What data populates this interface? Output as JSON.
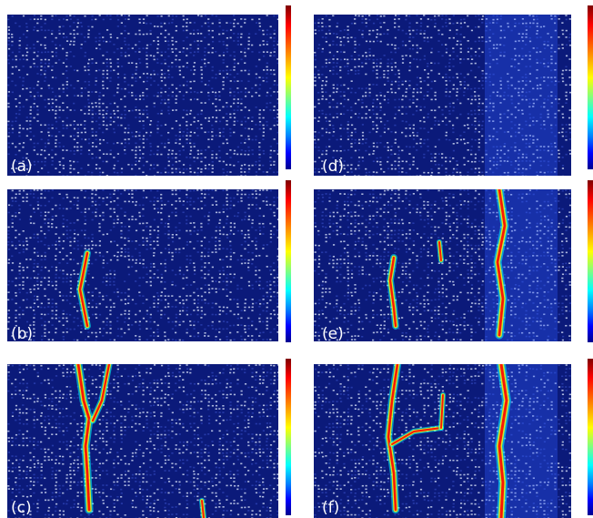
{
  "panels": [
    {
      "id": "a",
      "label": "(a)"
    },
    {
      "id": "b",
      "label": "(b)"
    },
    {
      "id": "c",
      "label": "(c)"
    },
    {
      "id": "d",
      "label": "(d)"
    },
    {
      "id": "e",
      "label": "(e)"
    },
    {
      "id": "f",
      "label": "(f)"
    }
  ],
  "colors": {
    "background_dark": "#0b1a7a",
    "background_mid": "#2a3fb0",
    "mesh_light": "#c8d2f0",
    "damage_low": "#00ffff",
    "damage_mid": "#ffff00",
    "damage_high": "#ff0000"
  },
  "colormap": "jet"
}
